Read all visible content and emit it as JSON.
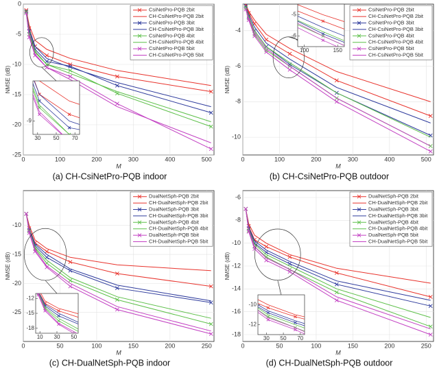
{
  "chart_data": [
    {
      "type": "line",
      "title": "(a) CH-CsiNetPro-PQB indoor",
      "xlabel": "M",
      "ylabel": "NMSE (dB)",
      "x": [
        8,
        16,
        32,
        64,
        128,
        256,
        512
      ],
      "xlim": [
        0,
        520
      ],
      "xticks": [
        0,
        100,
        200,
        300,
        400,
        500
      ],
      "ylim": [
        -25,
        0
      ],
      "yticks": [
        0,
        -5,
        -10,
        -15,
        -20,
        -25
      ],
      "grid": true,
      "legend": "upper right",
      "series": [
        {
          "name": "CsiNetPro-PQB 2bit",
          "color": "#e8312a",
          "marker": "x",
          "values": [
            -1,
            -4,
            -7,
            -8.5,
            -10,
            -12,
            -14.5
          ]
        },
        {
          "name": "CH-CsiNetPro-PQB 2bit",
          "color": "#e8312a",
          "values": [
            -1,
            -3.5,
            -6,
            -7.5,
            -9,
            -11,
            -13.5
          ]
        },
        {
          "name": "CsiNetPro-PQB 3bit",
          "color": "#2d3a9c",
          "marker": "x",
          "values": [
            -1.2,
            -4.5,
            -7.5,
            -9.5,
            -10.3,
            -13.5,
            -18
          ]
        },
        {
          "name": "CH-CsiNetPro-PQB 3bit",
          "color": "#2d3a9c",
          "values": [
            -1.2,
            -4.2,
            -7,
            -9,
            -10.5,
            -13,
            -17
          ]
        },
        {
          "name": "CsiNetPro-PQB 4bit",
          "color": "#5cbf48",
          "marker": "x",
          "values": [
            -1.3,
            -5,
            -8,
            -10,
            -11,
            -14.8,
            -20.3
          ]
        },
        {
          "name": "CH-CsiNetPro-PQB 4bit",
          "color": "#5cbf48",
          "values": [
            -1.3,
            -4.8,
            -7.8,
            -10,
            -11.5,
            -14.5,
            -19.5
          ]
        },
        {
          "name": "CsiNetPro-PQB 5bit",
          "color": "#c23fc2",
          "marker": "x",
          "values": [
            -1.5,
            -5.5,
            -8.5,
            -10.5,
            -12,
            -16.5,
            -24
          ]
        },
        {
          "name": "CH-CsiNetPro-PQB 5bit",
          "color": "#c23fc2",
          "values": [
            -1.5,
            -5.3,
            -8.3,
            -10.5,
            -12.5,
            -17,
            -23
          ]
        }
      ],
      "inset": {
        "xlim": [
          25,
          75
        ],
        "ylim": [
          -10,
          -6
        ],
        "xticks": [
          30,
          50,
          70
        ],
        "yticks": [
          -9
        ]
      }
    },
    {
      "type": "line",
      "title": "(b) CH-CsiNetPro-PQB outdoor",
      "xlabel": "M",
      "ylabel": "NMSE (dB)",
      "x": [
        8,
        16,
        32,
        64,
        128,
        256,
        512
      ],
      "xlim": [
        0,
        520
      ],
      "xticks": [
        0,
        100,
        200,
        300,
        400,
        500
      ],
      "ylim": [
        -11,
        -2.5
      ],
      "yticks": [
        -4,
        -6,
        -8,
        -10
      ],
      "grid": true,
      "legend": "upper right",
      "series": [
        {
          "name": "CsiNetPro-PQB 2bit",
          "color": "#e8312a",
          "marker": "x",
          "values": [
            -2.5,
            -3,
            -3.6,
            -4.5,
            -5.3,
            -6.8,
            -8.8
          ]
        },
        {
          "name": "CH-CsiNetPro-PQB 2bit",
          "color": "#e8312a",
          "values": [
            -2.5,
            -2.9,
            -3.4,
            -4.2,
            -5,
            -6.3,
            -8
          ]
        },
        {
          "name": "CsiNetPro-PQB 3bit",
          "color": "#2d3a9c",
          "marker": "x",
          "values": [
            -2.6,
            -3.2,
            -4,
            -4.9,
            -5.9,
            -7.5,
            -9.9
          ]
        },
        {
          "name": "CH-CsiNetPro-PQB 3bit",
          "color": "#2d3a9c",
          "values": [
            -2.6,
            -3.1,
            -3.8,
            -4.7,
            -5.6,
            -7.2,
            -9.2
          ]
        },
        {
          "name": "CsiNetPro-PQB 4bit",
          "color": "#5cbf48",
          "marker": "x",
          "values": [
            -2.7,
            -3.3,
            -4.2,
            -5.1,
            -6,
            -7.8,
            -10.5
          ]
        },
        {
          "name": "CH-CsiNetPro-PQB 4bit",
          "color": "#5cbf48",
          "values": [
            -2.7,
            -3.2,
            -4,
            -4.9,
            -5.8,
            -7.5,
            -10
          ]
        },
        {
          "name": "CsiNetPro-PQB 5bit",
          "color": "#c23fc2",
          "marker": "x",
          "values": [
            -2.8,
            -3.4,
            -4.3,
            -5.2,
            -6.2,
            -8,
            -10.8
          ]
        },
        {
          "name": "CH-CsiNetPro-PQB 5bit",
          "color": "#c23fc2",
          "values": [
            -2.8,
            -3.3,
            -4.1,
            -5,
            -6,
            -7.8,
            -10.5
          ]
        }
      ],
      "inset": {
        "xlim": [
          90,
          160
        ],
        "ylim": [
          -6.5,
          -4.5
        ],
        "xticks": [
          100,
          150
        ],
        "yticks": [
          -5,
          -6
        ]
      }
    },
    {
      "type": "line",
      "title": "(c) CH-DualNetSph-PQB indoor",
      "xlabel": "M",
      "ylabel": "NMSE (dB)",
      "x": [
        4,
        8,
        16,
        32,
        64,
        128,
        256
      ],
      "xlim": [
        0,
        260
      ],
      "xticks": [
        0,
        50,
        100,
        150,
        200,
        250
      ],
      "ylim": [
        -30,
        -4
      ],
      "yticks": [
        -10,
        -15,
        -20,
        -25
      ],
      "grid": true,
      "legend": "upper right",
      "series": [
        {
          "name": "DualNetSph-PQB 2bit",
          "color": "#e8312a",
          "marker": "x",
          "values": [
            -8,
            -10.5,
            -13,
            -14.5,
            -16.3,
            -18.3,
            -20.5
          ]
        },
        {
          "name": "CH-DualNetSph-PQB 2bit",
          "color": "#e8312a",
          "values": [
            -8,
            -10,
            -12.5,
            -14,
            -15.5,
            -16.8,
            -17.8
          ]
        },
        {
          "name": "DualNetSph-PQB 3bit",
          "color": "#2d3a9c",
          "marker": "x",
          "values": [
            -8,
            -10.8,
            -13.5,
            -15.5,
            -17.8,
            -20.8,
            -23.3
          ]
        },
        {
          "name": "CH-DualNetSph-PQB 3bit",
          "color": "#2d3a9c",
          "values": [
            -8,
            -10.6,
            -13.2,
            -15,
            -17.5,
            -20.3,
            -23
          ]
        },
        {
          "name": "DualNetSph-PQB 4bit",
          "color": "#5cbf48",
          "marker": "x",
          "values": [
            -8,
            -11,
            -14,
            -16.5,
            -19.5,
            -22.8,
            -27
          ]
        },
        {
          "name": "CH-DualNetSph-PQB 4bit",
          "color": "#5cbf48",
          "values": [
            -8,
            -10.8,
            -13.8,
            -16,
            -19,
            -22.3,
            -26
          ]
        },
        {
          "name": "DualNetSph-PQB 5bit",
          "color": "#c23fc2",
          "marker": "x",
          "values": [
            -8,
            -11.3,
            -14.5,
            -17.2,
            -20.5,
            -24.5,
            -28.7
          ]
        },
        {
          "name": "CH-DualNetSph-PQB 5bit",
          "color": "#c23fc2",
          "values": [
            -8,
            -11,
            -14.2,
            -17,
            -20,
            -24,
            -28.2
          ]
        }
      ],
      "inset": {
        "xlim": [
          5,
          55
        ],
        "ylim": [
          -19,
          -11
        ],
        "xticks": [
          10,
          30,
          50
        ],
        "yticks": [
          -12,
          -15,
          -18
        ]
      }
    },
    {
      "type": "line",
      "title": "(d) CH-DualNetSph-PQB outdoor",
      "xlabel": "M",
      "ylabel": "NMSE (dB)",
      "x": [
        4,
        8,
        16,
        32,
        64,
        128,
        256
      ],
      "xlim": [
        0,
        260
      ],
      "xticks": [
        0,
        50,
        100,
        150,
        200,
        250
      ],
      "ylim": [
        -18.6,
        -5.4
      ],
      "yticks": [
        -6,
        -8,
        -10,
        -12,
        -14,
        -16,
        -18
      ],
      "grid": true,
      "legend": "upper right",
      "series": [
        {
          "name": "DualNetSph-PQB 2bit",
          "color": "#e8312a",
          "marker": "x",
          "values": [
            -7,
            -8.5,
            -9.7,
            -10.3,
            -11.2,
            -12.6,
            -14.7
          ]
        },
        {
          "name": "CH-DualNetSph-PQB 2bit",
          "color": "#e8312a",
          "values": [
            -7,
            -8.3,
            -9.3,
            -10,
            -11,
            -12.2,
            -13.5
          ]
        },
        {
          "name": "DualNetSph-PQB 3bit",
          "color": "#2d3a9c",
          "marker": "x",
          "values": [
            -7,
            -8.7,
            -10,
            -10.8,
            -11.8,
            -13.6,
            -15.5
          ]
        },
        {
          "name": "CH-DualNetSph-PQB 3bit",
          "color": "#2d3a9c",
          "values": [
            -7,
            -8.6,
            -9.8,
            -10.6,
            -11.6,
            -13.3,
            -15
          ]
        },
        {
          "name": "DualNetSph-PQB 4bit",
          "color": "#5cbf48",
          "marker": "x",
          "values": [
            -7,
            -8.9,
            -10.3,
            -11.2,
            -12.3,
            -14.3,
            -17.3
          ]
        },
        {
          "name": "CH-DualNetSph-PQB 4bit",
          "color": "#5cbf48",
          "values": [
            -7,
            -8.8,
            -10.1,
            -11,
            -12,
            -14,
            -16.5
          ]
        },
        {
          "name": "DualNetSph-PQB 5bit",
          "color": "#c23fc2",
          "marker": "x",
          "values": [
            -7,
            -9,
            -10.5,
            -11.5,
            -12.5,
            -15,
            -18
          ]
        },
        {
          "name": "CH-DualNetSph-PQB 5bit",
          "color": "#c23fc2",
          "values": [
            -7,
            -8.9,
            -10.3,
            -11.3,
            -12.3,
            -14.7,
            -17.5
          ]
        }
      ],
      "inset": {
        "xlim": [
          20,
          75
        ],
        "ylim": [
          -13,
          -9
        ],
        "xticks": [
          30,
          50,
          70
        ],
        "yticks": [
          -10,
          -12
        ]
      }
    }
  ]
}
